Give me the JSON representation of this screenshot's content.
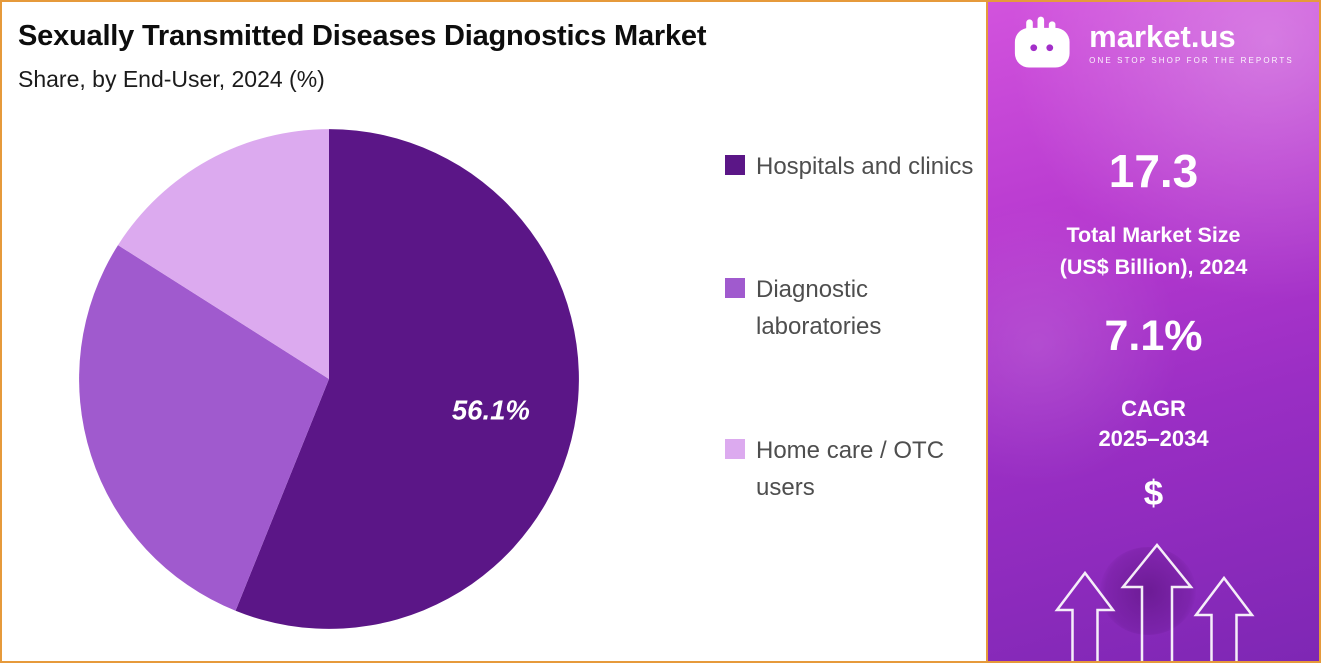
{
  "header": {
    "title": "Sexually Transmitted Diseases Diagnostics Market",
    "subtitle": "Share, by End-User, 2024 (%)"
  },
  "chart_data": {
    "type": "pie",
    "labels": [
      "Hospitals and clinics",
      "Diagnostic laboratories",
      "Home care / OTC users"
    ],
    "values": [
      56.1,
      27.9,
      16.0
    ],
    "colors": [
      "#5b1687",
      "#a05ace",
      "#dcaaef"
    ],
    "data_label": "56.1%",
    "data_label_slice": 0,
    "start_angle": "12 o'clock",
    "direction": "clockwise",
    "legend_position": "right",
    "title": "Sexually Transmitted Diseases Diagnostics Market",
    "subtitle": "Share, by End-User, 2024 (%)"
  },
  "legend": {
    "items": [
      {
        "label": "Hospitals and clinics",
        "color": "#5b1687"
      },
      {
        "label": "Diagnostic laboratories",
        "color": "#a05ace"
      },
      {
        "label": "Home care / OTC users",
        "color": "#dcaaef"
      }
    ]
  },
  "sidebar": {
    "logo": {
      "brand": "market.us",
      "tagline": "ONE STOP SHOP FOR THE REPORTS"
    },
    "stats": [
      {
        "value": "17.3",
        "label_line1": "Total Market Size",
        "label_line2": "(US$ Billion), 2024"
      },
      {
        "value": "7.1%",
        "label_line1": "CAGR",
        "label_line2": "2025–2034"
      }
    ],
    "dollar_icon": "$",
    "colors": {
      "gradient_top": "#d253dd",
      "gradient_bottom": "#7e27b4",
      "border_accent": "#e69a3b"
    }
  }
}
